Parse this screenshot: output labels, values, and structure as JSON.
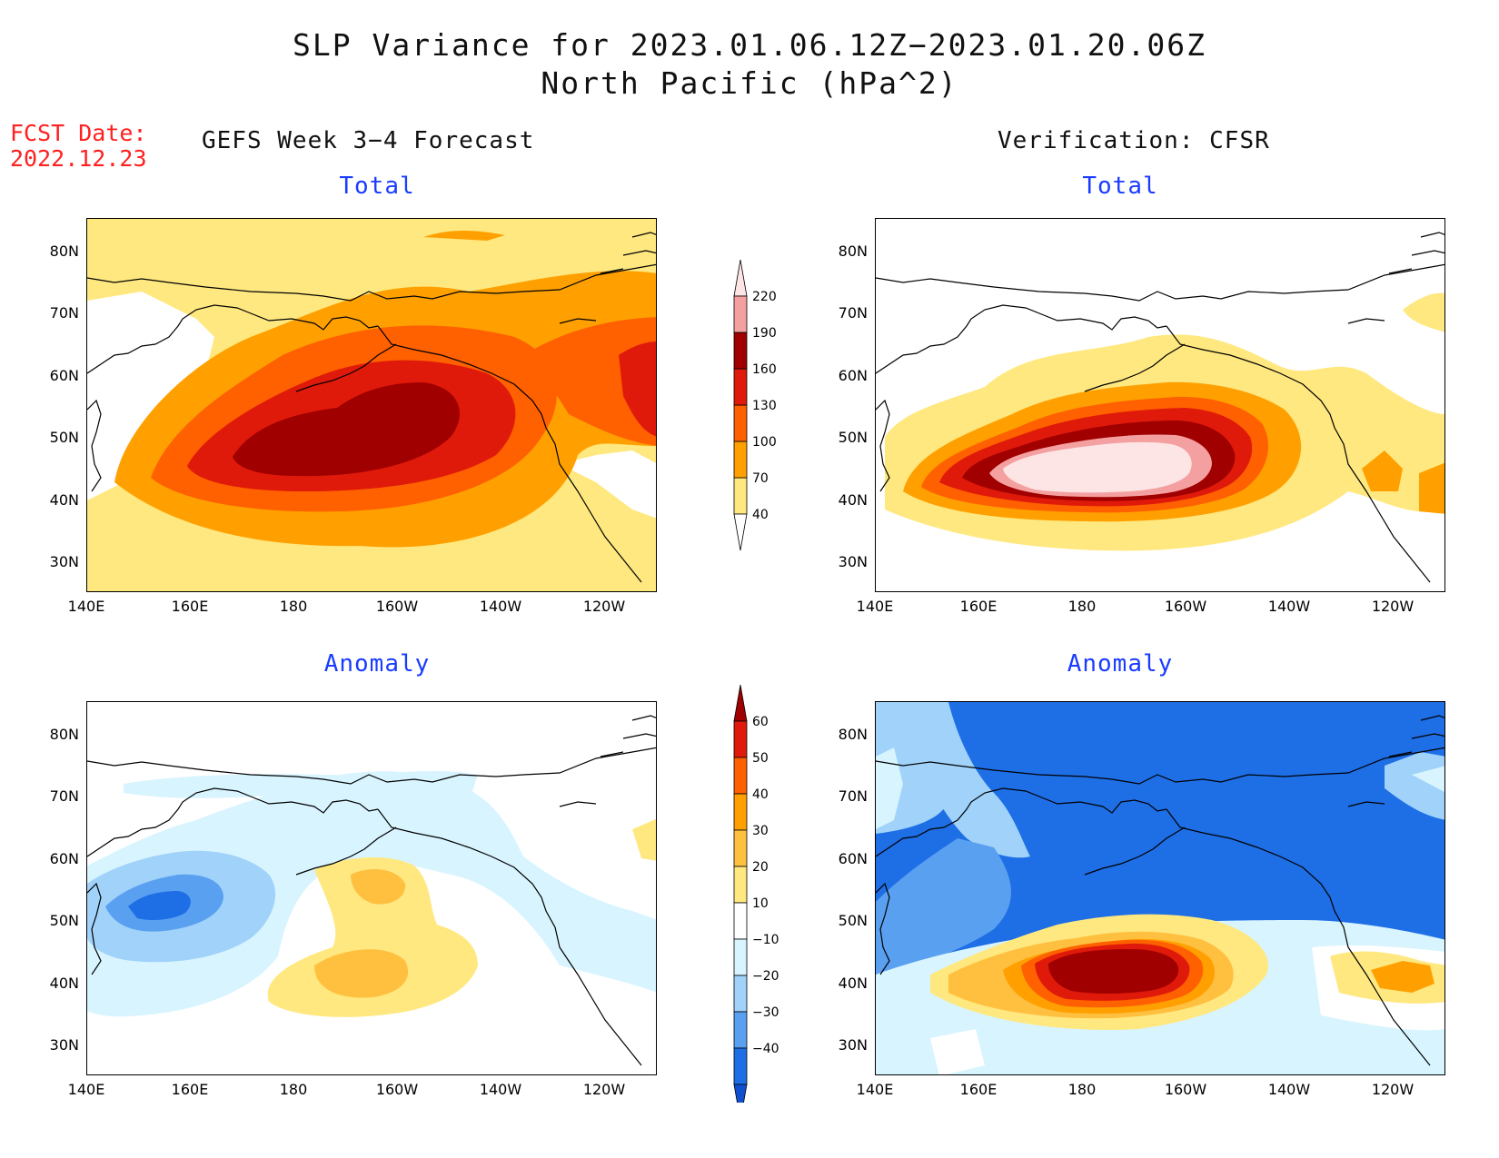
{
  "title": "SLP Variance for 2023.01.06.12Z−2023.01.20.06Z",
  "subtitle": "North Pacific (hPa^2)",
  "fcst_label": "FCST Date:",
  "fcst_date": "2022.12.23",
  "left_header": "GEFS Week 3−4 Forecast",
  "right_header": "Verification: CFSR",
  "panel_titles": {
    "top_left": "Total",
    "top_right": "Total",
    "bottom_left": "Anomaly",
    "bottom_right": "Anomaly"
  },
  "lat_labels": [
    "80N",
    "70N",
    "60N",
    "50N",
    "40N",
    "30N"
  ],
  "lon_labels": [
    "140E",
    "160E",
    "180",
    "160W",
    "140W",
    "120W"
  ],
  "total_colorbar": {
    "levels": [
      "40",
      "70",
      "100",
      "130",
      "160",
      "190",
      "220"
    ],
    "colors": [
      "#ffe880",
      "#ffa000",
      "#ff6000",
      "#e01a0a",
      "#a00000",
      "#f5a0a0",
      "#fde5e5"
    ]
  },
  "anomaly_colorbar": {
    "levels": [
      "60",
      "50",
      "40",
      "30",
      "20",
      "10",
      "−10",
      "−20",
      "−30",
      "−40"
    ],
    "colors": [
      "#a00000",
      "#e01a0a",
      "#ff6000",
      "#ffa000",
      "#ffc040",
      "#ffe880",
      "#ffffff",
      "#d8f4ff",
      "#a0d2fa",
      "#5aa0f0",
      "#1e6ee6",
      "#1050d0"
    ]
  },
  "colors": {
    "title": "#111111",
    "fcst": "#ff2020",
    "panel_title": "#1a3cff"
  }
}
